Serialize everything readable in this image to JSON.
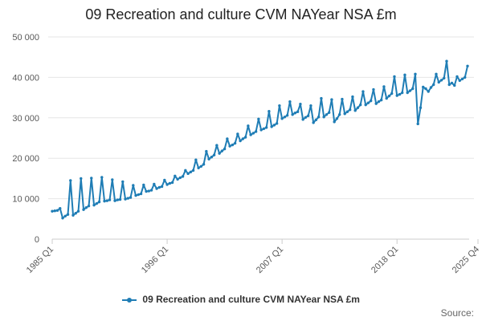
{
  "chart_data": {
    "type": "line",
    "title": "09 Recreation and culture CVM NAYear NSA £m",
    "xlabel": "",
    "ylabel": "",
    "ylim": [
      0,
      50000
    ],
    "yticks": [
      0,
      10000,
      20000,
      30000,
      40000,
      50000
    ],
    "ytick_labels": [
      "0",
      "10 000",
      "20 000",
      "30 000",
      "40 000",
      "50 000"
    ],
    "xtick_labels": [
      "1985 Q1",
      "1996 Q1",
      "2007 Q1",
      "2018 Q1",
      "2025 Q4"
    ],
    "xtick_indices": [
      0,
      44,
      88,
      132,
      163
    ],
    "legend": [
      "09 Recreation and culture CVM NAYear NSA £m"
    ],
    "series": [
      {
        "name": "09 Recreation and culture CVM NAYear NSA £m",
        "color": "#1f7db5",
        "values": [
          6900,
          7000,
          7100,
          7600,
          5200,
          5700,
          6100,
          14500,
          5900,
          6400,
          6900,
          15000,
          7300,
          7800,
          8200,
          15100,
          8400,
          8800,
          9200,
          15300,
          9400,
          9500,
          9700,
          14700,
          9500,
          9700,
          9800,
          14200,
          9900,
          10100,
          10300,
          13300,
          10800,
          11000,
          11200,
          13400,
          11800,
          11900,
          12100,
          13600,
          12500,
          12800,
          13000,
          14600,
          13500,
          13800,
          14000,
          15600,
          14800,
          15200,
          15500,
          17000,
          16200,
          16600,
          17000,
          19600,
          17600,
          18000,
          18500,
          21700,
          19800,
          20300,
          20800,
          23200,
          21200,
          21800,
          22300,
          24800,
          23000,
          23300,
          23700,
          26000,
          24300,
          24800,
          25200,
          28000,
          25800,
          26200,
          26600,
          29700,
          27000,
          27300,
          27600,
          31600,
          27800,
          28200,
          28600,
          33000,
          29800,
          30200,
          30600,
          34000,
          30800,
          31200,
          31500,
          33400,
          29600,
          30100,
          30500,
          33000,
          28800,
          29500,
          30200,
          34800,
          30200,
          30800,
          31300,
          34500,
          29000,
          29800,
          30800,
          34600,
          31000,
          31500,
          32000,
          35200,
          31800,
          32500,
          33200,
          36500,
          33200,
          33700,
          34200,
          37000,
          33500,
          34000,
          34400,
          37700,
          34800,
          35400,
          36000,
          40200,
          35500,
          35800,
          36200,
          40600,
          36200,
          36700,
          37200,
          40800,
          28500,
          32500,
          37600,
          37200,
          36500,
          37500,
          38200,
          40800,
          38800,
          39300,
          39800,
          44000,
          38200,
          38600,
          38000,
          40200,
          39200,
          39600,
          40000,
          42800
        ]
      }
    ]
  },
  "source": {
    "label": "Source:"
  }
}
